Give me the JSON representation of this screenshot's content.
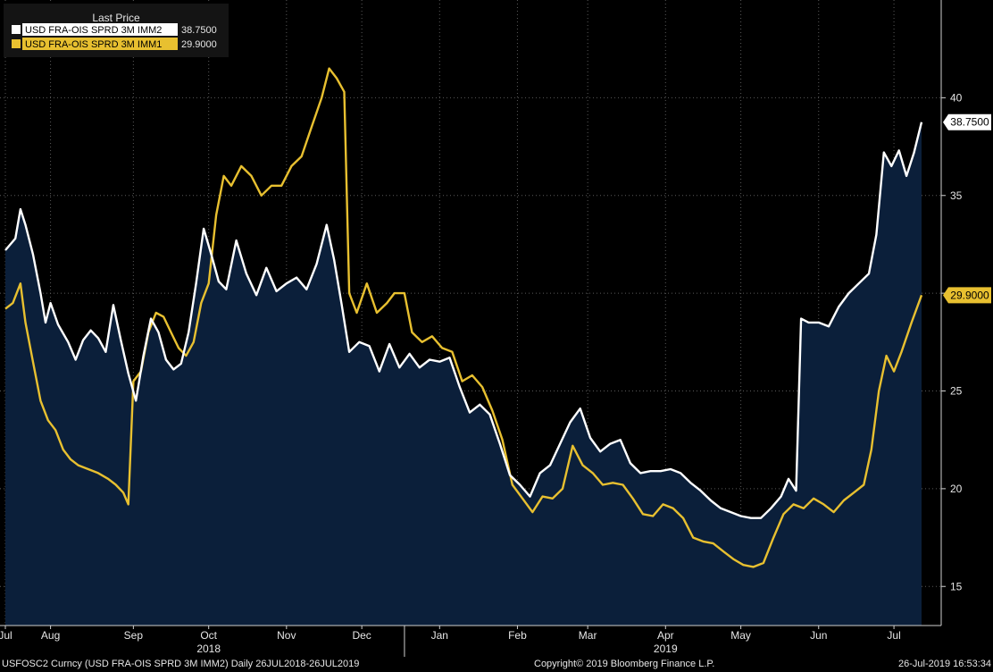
{
  "chart_data": {
    "type": "line",
    "legend_title": "Last Price",
    "legend_position": "top-left",
    "grid": true,
    "ylim": [
      13,
      45
    ],
    "y_ticks": [
      15,
      20,
      25,
      30,
      35,
      40
    ],
    "x_range": [
      "2018-07-26",
      "2019-07-26"
    ],
    "x_ticks": [
      {
        "date": "2018-07-26",
        "label": "Jul"
      },
      {
        "date": "2018-08-13",
        "label": "Aug"
      },
      {
        "date": "2018-09-15",
        "label": "Sep"
      },
      {
        "date": "2018-10-15",
        "label": "Oct"
      },
      {
        "date": "2018-11-15",
        "label": "Nov"
      },
      {
        "date": "2018-12-15",
        "label": "Dec"
      },
      {
        "date": "2019-01-15",
        "label": "Jan"
      },
      {
        "date": "2019-02-15",
        "label": "Feb"
      },
      {
        "date": "2019-03-15",
        "label": "Mar"
      },
      {
        "date": "2019-04-15",
        "label": "Apr"
      },
      {
        "date": "2019-05-15",
        "label": "May"
      },
      {
        "date": "2019-06-15",
        "label": "Jun"
      },
      {
        "date": "2019-07-15",
        "label": "Jul"
      }
    ],
    "year_labels": [
      {
        "date": "2018-10-15",
        "label": "2018"
      },
      {
        "date": "2019-04-15",
        "label": "2019"
      }
    ],
    "year_dividers": [
      "2019-01-01"
    ],
    "series": [
      {
        "name": "USD FRA-OIS SPRD 3M IMM2",
        "last": "38.7500",
        "color": "#ffffff",
        "filled": true,
        "points": [
          [
            "2018-07-26",
            32.2
          ],
          [
            "2018-07-30",
            32.8
          ],
          [
            "2018-08-01",
            34.3
          ],
          [
            "2018-08-03",
            33.5
          ],
          [
            "2018-08-06",
            32.0
          ],
          [
            "2018-08-09",
            30.0
          ],
          [
            "2018-08-11",
            28.5
          ],
          [
            "2018-08-13",
            29.5
          ],
          [
            "2018-08-16",
            28.4
          ],
          [
            "2018-08-20",
            27.5
          ],
          [
            "2018-08-23",
            26.6
          ],
          [
            "2018-08-26",
            27.6
          ],
          [
            "2018-08-29",
            28.1
          ],
          [
            "2018-09-01",
            27.7
          ],
          [
            "2018-09-04",
            27.0
          ],
          [
            "2018-09-07",
            29.4
          ],
          [
            "2018-09-10",
            27.6
          ],
          [
            "2018-09-13",
            25.9
          ],
          [
            "2018-09-16",
            24.5
          ],
          [
            "2018-09-19",
            26.8
          ],
          [
            "2018-09-22",
            28.7
          ],
          [
            "2018-09-25",
            28.0
          ],
          [
            "2018-09-28",
            26.6
          ],
          [
            "2018-10-01",
            26.1
          ],
          [
            "2018-10-04",
            26.4
          ],
          [
            "2018-10-07",
            28.0
          ],
          [
            "2018-10-10",
            30.5
          ],
          [
            "2018-10-13",
            33.3
          ],
          [
            "2018-10-16",
            32.0
          ],
          [
            "2018-10-19",
            30.6
          ],
          [
            "2018-10-22",
            30.2
          ],
          [
            "2018-10-26",
            32.7
          ],
          [
            "2018-10-30",
            31.0
          ],
          [
            "2018-11-03",
            29.9
          ],
          [
            "2018-11-07",
            31.3
          ],
          [
            "2018-11-11",
            30.1
          ],
          [
            "2018-11-15",
            30.5
          ],
          [
            "2018-11-19",
            30.8
          ],
          [
            "2018-11-23",
            30.2
          ],
          [
            "2018-11-27",
            31.5
          ],
          [
            "2018-12-01",
            33.5
          ],
          [
            "2018-12-04",
            31.7
          ],
          [
            "2018-12-07",
            29.4
          ],
          [
            "2018-12-10",
            27.0
          ],
          [
            "2018-12-14",
            27.5
          ],
          [
            "2018-12-18",
            27.3
          ],
          [
            "2018-12-22",
            26.0
          ],
          [
            "2018-12-26",
            27.4
          ],
          [
            "2018-12-30",
            26.2
          ],
          [
            "2019-01-03",
            26.9
          ],
          [
            "2019-01-07",
            26.2
          ],
          [
            "2019-01-11",
            26.6
          ],
          [
            "2019-01-15",
            26.5
          ],
          [
            "2019-01-19",
            26.7
          ],
          [
            "2019-01-23",
            25.2
          ],
          [
            "2019-01-27",
            23.9
          ],
          [
            "2019-01-31",
            24.3
          ],
          [
            "2019-02-04",
            23.8
          ],
          [
            "2019-02-08",
            22.3
          ],
          [
            "2019-02-12",
            20.7
          ],
          [
            "2019-02-16",
            20.2
          ],
          [
            "2019-02-20",
            19.6
          ],
          [
            "2019-02-24",
            20.8
          ],
          [
            "2019-02-28",
            21.2
          ],
          [
            "2019-03-04",
            22.3
          ],
          [
            "2019-03-08",
            23.4
          ],
          [
            "2019-03-12",
            24.1
          ],
          [
            "2019-03-16",
            22.6
          ],
          [
            "2019-03-20",
            21.9
          ],
          [
            "2019-03-24",
            22.3
          ],
          [
            "2019-03-28",
            22.5
          ],
          [
            "2019-04-01",
            21.3
          ],
          [
            "2019-04-05",
            20.8
          ],
          [
            "2019-04-09",
            20.9
          ],
          [
            "2019-04-13",
            20.9
          ],
          [
            "2019-04-17",
            21.0
          ],
          [
            "2019-04-21",
            20.8
          ],
          [
            "2019-04-25",
            20.3
          ],
          [
            "2019-04-29",
            19.9
          ],
          [
            "2019-05-03",
            19.4
          ],
          [
            "2019-05-07",
            19.0
          ],
          [
            "2019-05-11",
            18.8
          ],
          [
            "2019-05-15",
            18.6
          ],
          [
            "2019-05-19",
            18.5
          ],
          [
            "2019-05-23",
            18.5
          ],
          [
            "2019-05-27",
            19.0
          ],
          [
            "2019-05-31",
            19.6
          ],
          [
            "2019-06-03",
            20.5
          ],
          [
            "2019-06-06",
            19.9
          ],
          [
            "2019-06-08",
            28.7
          ],
          [
            "2019-06-11",
            28.5
          ],
          [
            "2019-06-15",
            28.5
          ],
          [
            "2019-06-19",
            28.3
          ],
          [
            "2019-06-23",
            29.3
          ],
          [
            "2019-06-27",
            30.0
          ],
          [
            "2019-07-01",
            30.5
          ],
          [
            "2019-07-05",
            31.0
          ],
          [
            "2019-07-08",
            33.0
          ],
          [
            "2019-07-11",
            37.2
          ],
          [
            "2019-07-14",
            36.5
          ],
          [
            "2019-07-17",
            37.3
          ],
          [
            "2019-07-20",
            36.0
          ],
          [
            "2019-07-23",
            37.2
          ],
          [
            "2019-07-26",
            38.75
          ]
        ]
      },
      {
        "name": "USD FRA-OIS SPRD 3M IMM1",
        "last": "29.9000",
        "color": "#e8c030",
        "filled": false,
        "points": [
          [
            "2018-07-26",
            29.2
          ],
          [
            "2018-07-29",
            29.5
          ],
          [
            "2018-08-01",
            30.5
          ],
          [
            "2018-08-03",
            28.5
          ],
          [
            "2018-08-06",
            26.5
          ],
          [
            "2018-08-09",
            24.5
          ],
          [
            "2018-08-12",
            23.5
          ],
          [
            "2018-08-15",
            23.0
          ],
          [
            "2018-08-18",
            22.0
          ],
          [
            "2018-08-21",
            21.5
          ],
          [
            "2018-08-24",
            21.2
          ],
          [
            "2018-08-28",
            21.0
          ],
          [
            "2018-09-01",
            20.8
          ],
          [
            "2018-09-05",
            20.5
          ],
          [
            "2018-09-08",
            20.2
          ],
          [
            "2018-09-11",
            19.8
          ],
          [
            "2018-09-13",
            19.2
          ],
          [
            "2018-09-15",
            25.5
          ],
          [
            "2018-09-18",
            26.0
          ],
          [
            "2018-09-21",
            28.0
          ],
          [
            "2018-09-24",
            29.0
          ],
          [
            "2018-09-27",
            28.8
          ],
          [
            "2018-09-30",
            28.0
          ],
          [
            "2018-10-03",
            27.2
          ],
          [
            "2018-10-06",
            26.8
          ],
          [
            "2018-10-09",
            27.5
          ],
          [
            "2018-10-12",
            29.5
          ],
          [
            "2018-10-15",
            30.5
          ],
          [
            "2018-10-18",
            34.0
          ],
          [
            "2018-10-21",
            36.0
          ],
          [
            "2018-10-24",
            35.5
          ],
          [
            "2018-10-28",
            36.5
          ],
          [
            "2018-11-01",
            36.0
          ],
          [
            "2018-11-05",
            35.0
          ],
          [
            "2018-11-09",
            35.5
          ],
          [
            "2018-11-13",
            35.5
          ],
          [
            "2018-11-17",
            36.5
          ],
          [
            "2018-11-21",
            37.0
          ],
          [
            "2018-11-25",
            38.5
          ],
          [
            "2018-11-29",
            40.0
          ],
          [
            "2018-12-02",
            41.5
          ],
          [
            "2018-12-05",
            41.0
          ],
          [
            "2018-12-08",
            40.3
          ],
          [
            "2018-12-10",
            30.0
          ],
          [
            "2018-12-13",
            29.0
          ],
          [
            "2018-12-17",
            30.5
          ],
          [
            "2018-12-21",
            29.0
          ],
          [
            "2018-12-25",
            29.5
          ],
          [
            "2018-12-28",
            30.0
          ],
          [
            "2019-01-01",
            30.0
          ],
          [
            "2019-01-04",
            28.0
          ],
          [
            "2019-01-08",
            27.5
          ],
          [
            "2019-01-12",
            27.8
          ],
          [
            "2019-01-16",
            27.2
          ],
          [
            "2019-01-20",
            27.0
          ],
          [
            "2019-01-24",
            25.5
          ],
          [
            "2019-01-28",
            25.8
          ],
          [
            "2019-02-01",
            25.2
          ],
          [
            "2019-02-05",
            24.0
          ],
          [
            "2019-02-09",
            22.5
          ],
          [
            "2019-02-13",
            20.2
          ],
          [
            "2019-02-17",
            19.5
          ],
          [
            "2019-02-21",
            18.8
          ],
          [
            "2019-02-25",
            19.6
          ],
          [
            "2019-03-01",
            19.5
          ],
          [
            "2019-03-05",
            20.0
          ],
          [
            "2019-03-09",
            22.2
          ],
          [
            "2019-03-13",
            21.2
          ],
          [
            "2019-03-17",
            20.8
          ],
          [
            "2019-03-21",
            20.2
          ],
          [
            "2019-03-25",
            20.3
          ],
          [
            "2019-03-29",
            20.2
          ],
          [
            "2019-04-02",
            19.5
          ],
          [
            "2019-04-06",
            18.7
          ],
          [
            "2019-04-10",
            18.6
          ],
          [
            "2019-04-14",
            19.2
          ],
          [
            "2019-04-18",
            19.0
          ],
          [
            "2019-04-22",
            18.5
          ],
          [
            "2019-04-26",
            17.5
          ],
          [
            "2019-04-30",
            17.3
          ],
          [
            "2019-05-04",
            17.2
          ],
          [
            "2019-05-08",
            16.8
          ],
          [
            "2019-05-12",
            16.4
          ],
          [
            "2019-05-16",
            16.1
          ],
          [
            "2019-05-20",
            16.0
          ],
          [
            "2019-05-24",
            16.2
          ],
          [
            "2019-05-28",
            17.5
          ],
          [
            "2019-06-01",
            18.7
          ],
          [
            "2019-06-05",
            19.2
          ],
          [
            "2019-06-09",
            19.0
          ],
          [
            "2019-06-13",
            19.5
          ],
          [
            "2019-06-17",
            19.2
          ],
          [
            "2019-06-21",
            18.8
          ],
          [
            "2019-06-25",
            19.4
          ],
          [
            "2019-06-29",
            19.8
          ],
          [
            "2019-07-03",
            20.2
          ],
          [
            "2019-07-06",
            22.0
          ],
          [
            "2019-07-09",
            25.0
          ],
          [
            "2019-07-12",
            26.8
          ],
          [
            "2019-07-15",
            26.0
          ],
          [
            "2019-07-18",
            27.0
          ],
          [
            "2019-07-22",
            28.5
          ],
          [
            "2019-07-26",
            29.9
          ]
        ]
      }
    ]
  },
  "footer": {
    "left": "USFOSC2 Curncy (USD FRA-OIS SPRD 3M IMM2)  Daily 26JUL2018-26JUL2019",
    "center": "Copyright© 2019 Bloomberg Finance L.P.",
    "right": "26-Jul-2019 16:53:34"
  }
}
